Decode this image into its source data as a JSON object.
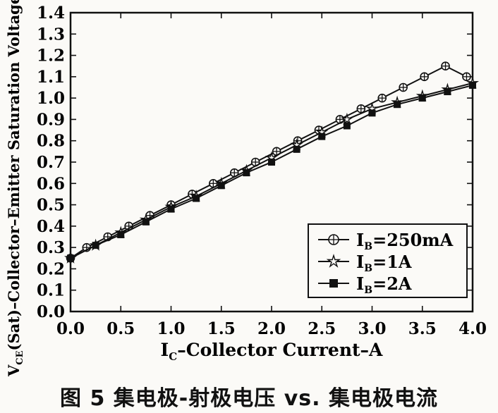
{
  "caption": "图 5   集电极-射极电压 vs. 集电极电流",
  "chart_data": {
    "type": "line",
    "xlabel": {
      "main": "I",
      "sub": "C",
      "rest": "–Collector Current–A"
    },
    "ylabel": {
      "main": "V",
      "sub": "CE",
      "rest": "(Sat)–Collector–Emitter Saturation Voltage–V"
    },
    "xlim": [
      0,
      4.0
    ],
    "ylim": [
      0,
      1.4
    ],
    "x_ticks": [
      "0.0",
      "0.5",
      "1.0",
      "1.5",
      "2.0",
      "2.5",
      "3.0",
      "3.5",
      "4.0"
    ],
    "y_ticks": [
      "0.0",
      "0.1",
      "0.2",
      "0.3",
      "0.4",
      "0.5",
      "0.6",
      "0.7",
      "0.8",
      "0.9",
      "1.0",
      "1.1",
      "1.2",
      "1.3",
      "1.4"
    ],
    "grid": false,
    "legend_position": "bottom-right",
    "series": [
      {
        "name": "I_B=250mA",
        "label_main": "I",
        "label_sub": "B",
        "label_rest": "=250mA",
        "marker": "circle-plus",
        "x": [
          0.0,
          0.16,
          0.37,
          0.58,
          0.79,
          1.0,
          1.21,
          1.42,
          1.63,
          1.84,
          2.05,
          2.26,
          2.47,
          2.68,
          2.89,
          3.1,
          3.31,
          3.52,
          3.73,
          3.94
        ],
        "y": [
          0.25,
          0.3,
          0.35,
          0.4,
          0.45,
          0.5,
          0.55,
          0.6,
          0.65,
          0.7,
          0.75,
          0.8,
          0.85,
          0.9,
          0.95,
          1.0,
          1.05,
          1.1,
          1.15,
          1.1
        ]
      },
      {
        "name": "I_B=1A",
        "label_main": "I",
        "label_sub": "B",
        "label_rest": "=1A",
        "marker": "star",
        "x": [
          0.0,
          0.25,
          0.5,
          0.75,
          1.0,
          1.25,
          1.5,
          1.75,
          2.0,
          2.25,
          2.5,
          2.75,
          3.0,
          3.25,
          3.5,
          3.75,
          4.0
        ],
        "y": [
          0.25,
          0.31,
          0.37,
          0.43,
          0.49,
          0.54,
          0.6,
          0.66,
          0.72,
          0.78,
          0.84,
          0.9,
          0.95,
          0.98,
          1.01,
          1.04,
          1.07
        ]
      },
      {
        "name": "I_B=2A",
        "label_main": "I",
        "label_sub": "B",
        "label_rest": "=2A",
        "marker": "square",
        "x": [
          0.0,
          0.25,
          0.5,
          0.75,
          1.0,
          1.25,
          1.5,
          1.75,
          2.0,
          2.25,
          2.5,
          2.75,
          3.0,
          3.25,
          3.5,
          3.75,
          4.0
        ],
        "y": [
          0.25,
          0.31,
          0.36,
          0.42,
          0.48,
          0.53,
          0.59,
          0.65,
          0.7,
          0.76,
          0.82,
          0.87,
          0.93,
          0.97,
          1.0,
          1.03,
          1.06
        ]
      }
    ]
  }
}
